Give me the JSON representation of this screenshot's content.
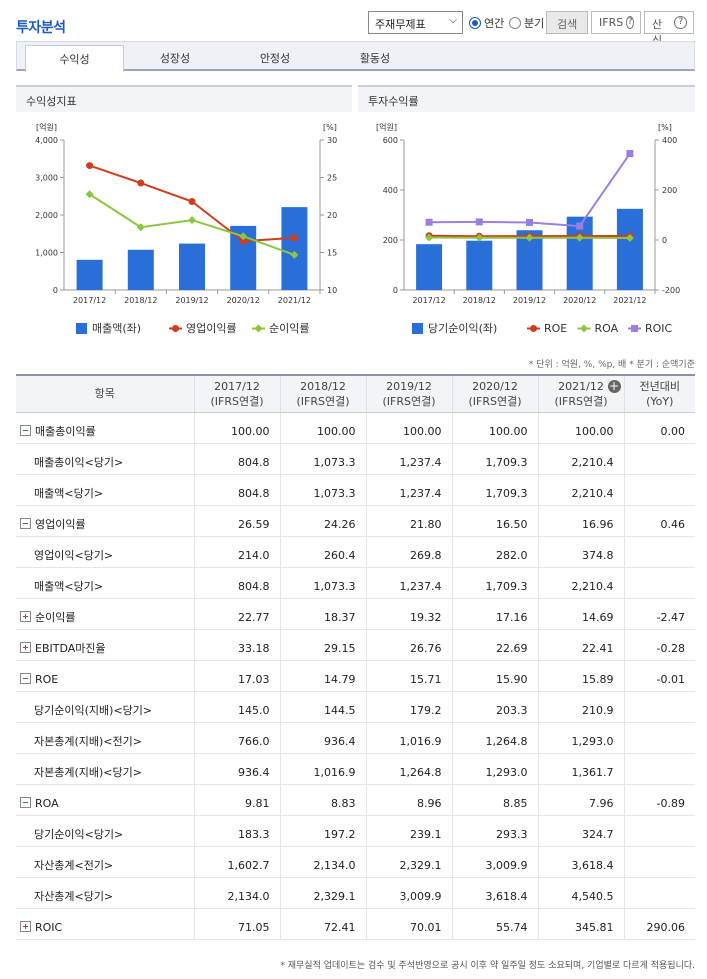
{
  "header": {
    "title": "투자분석",
    "select_value": "주재무제표",
    "radio_annual": "연간",
    "radio_quarter": "분기",
    "search_label": "검색",
    "ifrs_label": "IFRS",
    "formula_label": "산식",
    "help_glyph": "?"
  },
  "tabs": [
    "수익성",
    "성장성",
    "안정성",
    "활동성"
  ],
  "panels": {
    "left_title": "수익성지표",
    "right_title": "투자수익률"
  },
  "chart_data": [
    {
      "type": "bar",
      "title": "수익성지표",
      "categories": [
        "2017/12",
        "2018/12",
        "2019/12",
        "2020/12",
        "2021/12"
      ],
      "left_axis_unit": "[억원]",
      "right_axis_unit": "[%]",
      "left_ticks": [
        "4,000",
        "3,000",
        "2,000",
        "1,000",
        "0"
      ],
      "right_ticks": [
        "30",
        "25",
        "20",
        "15",
        "10"
      ],
      "ylim_left": [
        0,
        4000
      ],
      "ylim_right": [
        10,
        30
      ],
      "bar_series": {
        "name": "매출액(좌)",
        "values": [
          804.8,
          1073.3,
          1237.4,
          1709.3,
          2210.4
        ],
        "color": "#2a6ed8"
      },
      "line_series": [
        {
          "name": "영업이익률",
          "values": [
            26.59,
            24.26,
            21.8,
            16.5,
            16.96
          ],
          "color": "#d23b1e"
        },
        {
          "name": "순이익률",
          "values": [
            22.77,
            18.37,
            19.32,
            17.16,
            14.69
          ],
          "color": "#8cc63f"
        }
      ]
    },
    {
      "type": "bar",
      "title": "투자수익률",
      "categories": [
        "2017/12",
        "2018/12",
        "2019/12",
        "2020/12",
        "2021/12"
      ],
      "left_axis_unit": "[억원]",
      "right_axis_unit": "[%]",
      "left_ticks": [
        "600",
        "400",
        "200",
        "0"
      ],
      "right_ticks": [
        "400",
        "200",
        "0",
        "-200"
      ],
      "ylim_left": [
        0,
        600
      ],
      "ylim_right": [
        -200,
        400
      ],
      "bar_series": {
        "name": "당기순이익(좌)",
        "values": [
          183.3,
          197.2,
          239.1,
          293.3,
          324.7
        ],
        "color": "#2a6ed8"
      },
      "line_series": [
        {
          "name": "ROE",
          "values": [
            17.03,
            14.79,
            15.71,
            15.9,
            15.89
          ],
          "color": "#d23b1e"
        },
        {
          "name": "ROA",
          "values": [
            9.81,
            8.83,
            8.96,
            8.85,
            7.96
          ],
          "color": "#8cc63f"
        },
        {
          "name": "ROIC",
          "values": [
            71.05,
            72.41,
            70.01,
            55.74,
            345.81
          ],
          "color": "#9b7fe0"
        }
      ]
    }
  ],
  "unit_note": "* 단위 : 억원, %, %p, 배   * 분기 : 순액기준",
  "table": {
    "headers": [
      {
        "line1": "항목",
        "line2": ""
      },
      {
        "line1": "2017/12",
        "line2": "(IFRS연결)"
      },
      {
        "line1": "2018/12",
        "line2": "(IFRS연결)"
      },
      {
        "line1": "2019/12",
        "line2": "(IFRS연결)"
      },
      {
        "line1": "2020/12",
        "line2": "(IFRS연결)"
      },
      {
        "line1": "2021/12",
        "line2": "(IFRS연결)"
      },
      {
        "line1": "전년대비",
        "line2": "(YoY)"
      }
    ],
    "rows": [
      {
        "label": "매출총이익률",
        "toggle": "minus",
        "level": 1,
        "values": [
          "100.00",
          "100.00",
          "100.00",
          "100.00",
          "100.00",
          "0.00"
        ],
        "neg": false
      },
      {
        "label": "매출총이익<당기>",
        "toggle": "",
        "level": 2,
        "values": [
          "804.8",
          "1,073.3",
          "1,237.4",
          "1,709.3",
          "2,210.4",
          ""
        ],
        "neg": false
      },
      {
        "label": "매출액<당기>",
        "toggle": "",
        "level": 2,
        "values": [
          "804.8",
          "1,073.3",
          "1,237.4",
          "1,709.3",
          "2,210.4",
          ""
        ],
        "neg": false
      },
      {
        "label": "영업이익률",
        "toggle": "minus",
        "level": 1,
        "values": [
          "26.59",
          "24.26",
          "21.80",
          "16.50",
          "16.96",
          "0.46"
        ],
        "neg": false
      },
      {
        "label": "영업이익<당기>",
        "toggle": "",
        "level": 2,
        "values": [
          "214.0",
          "260.4",
          "269.8",
          "282.0",
          "374.8",
          ""
        ],
        "neg": false
      },
      {
        "label": "매출액<당기>",
        "toggle": "",
        "level": 2,
        "values": [
          "804.8",
          "1,073.3",
          "1,237.4",
          "1,709.3",
          "2,210.4",
          ""
        ],
        "neg": false
      },
      {
        "label": "순이익률",
        "toggle": "plus",
        "level": 1,
        "values": [
          "22.77",
          "18.37",
          "19.32",
          "17.16",
          "14.69",
          "-2.47"
        ],
        "neg": true
      },
      {
        "label": "EBITDA마진율",
        "toggle": "plus",
        "level": 1,
        "values": [
          "33.18",
          "29.15",
          "26.76",
          "22.69",
          "22.41",
          "-0.28"
        ],
        "neg": true
      },
      {
        "label": "ROE",
        "toggle": "minus",
        "level": 1,
        "values": [
          "17.03",
          "14.79",
          "15.71",
          "15.90",
          "15.89",
          "-0.01"
        ],
        "neg": true
      },
      {
        "label": "당기순이익(지배)<당기>",
        "toggle": "",
        "level": 2,
        "values": [
          "145.0",
          "144.5",
          "179.2",
          "203.3",
          "210.9",
          ""
        ],
        "neg": false
      },
      {
        "label": "자본총계(지배)<전기>",
        "toggle": "",
        "level": 2,
        "values": [
          "766.0",
          "936.4",
          "1,016.9",
          "1,264.8",
          "1,293.0",
          ""
        ],
        "neg": false
      },
      {
        "label": "자본총계(지배)<당기>",
        "toggle": "",
        "level": 2,
        "values": [
          "936.4",
          "1,016.9",
          "1,264.8",
          "1,293.0",
          "1,361.7",
          ""
        ],
        "neg": false
      },
      {
        "label": "ROA",
        "toggle": "minus",
        "level": 1,
        "values": [
          "9.81",
          "8.83",
          "8.96",
          "8.85",
          "7.96",
          "-0.89"
        ],
        "neg": true
      },
      {
        "label": "당기순이익<당기>",
        "toggle": "",
        "level": 2,
        "values": [
          "183.3",
          "197.2",
          "239.1",
          "293.3",
          "324.7",
          ""
        ],
        "neg": false
      },
      {
        "label": "자산총계<전기>",
        "toggle": "",
        "level": 2,
        "values": [
          "1,602.7",
          "2,134.0",
          "2,329.1",
          "3,009.9",
          "3,618.4",
          ""
        ],
        "neg": false
      },
      {
        "label": "자산총계<당기>",
        "toggle": "",
        "level": 2,
        "values": [
          "2,134.0",
          "2,329.1",
          "3,009.9",
          "3,618.4",
          "4,540.5",
          ""
        ],
        "neg": false
      },
      {
        "label": "ROIC",
        "toggle": "plus",
        "level": 1,
        "values": [
          "71.05",
          "72.41",
          "70.01",
          "55.74",
          "345.81",
          "290.06"
        ],
        "neg": false
      }
    ]
  },
  "footnote": "* 재무실적 업데이트는 검수 및 주석반영으로 공시 이후 약 일주일 정도 소요되며, 기업별로 다르게 적용됩니다."
}
